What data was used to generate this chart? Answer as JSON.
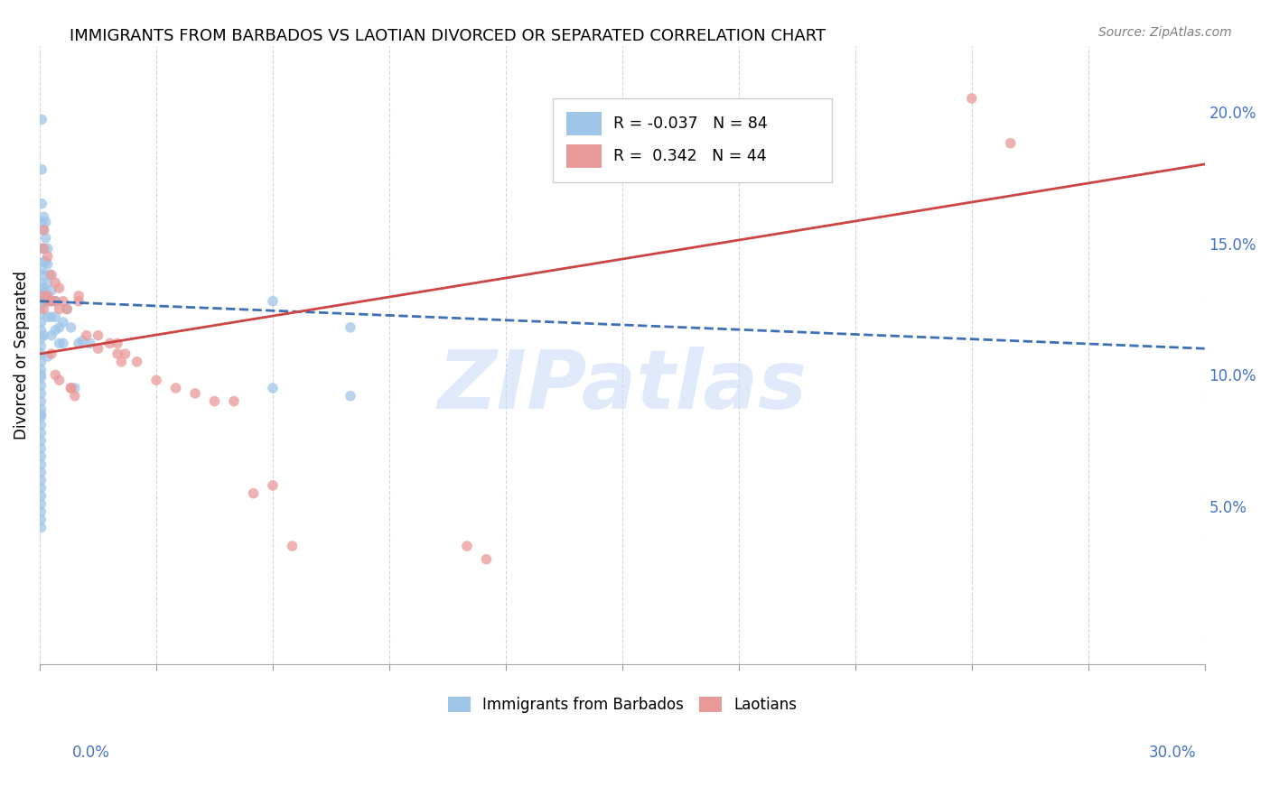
{
  "title": "IMMIGRANTS FROM BARBADOS VS LAOTIAN DIVORCED OR SEPARATED CORRELATION CHART",
  "source": "Source: ZipAtlas.com",
  "ylabel": "Divorced or Separated",
  "right_yticks": [
    "5.0%",
    "10.0%",
    "15.0%",
    "20.0%"
  ],
  "right_ytick_vals": [
    0.05,
    0.1,
    0.15,
    0.2
  ],
  "xlim": [
    0.0,
    0.3
  ],
  "ylim": [
    -0.01,
    0.225
  ],
  "legend_blue_R": "-0.037",
  "legend_blue_N": "84",
  "legend_pink_R": "0.342",
  "legend_pink_N": "44",
  "blue_color": "#9fc5e8",
  "pink_color": "#ea9999",
  "blue_line_color": "#3d6fb5",
  "pink_line_color": "#cc4444",
  "watermark": "ZIPatlas",
  "watermark_color": "#c9daf8",
  "blue_trend_x": [
    0.0,
    0.3
  ],
  "blue_trend_y": [
    0.128,
    0.11
  ],
  "pink_trend_x": [
    0.0,
    0.3
  ],
  "pink_trend_y": [
    0.108,
    0.18
  ],
  "blue_dots_x": [
    0.0005,
    0.0005,
    0.0005,
    0.0005,
    0.0005,
    0.0005,
    0.0005,
    0.001,
    0.001,
    0.001,
    0.001,
    0.001,
    0.001,
    0.001,
    0.001,
    0.0015,
    0.0015,
    0.0015,
    0.0015,
    0.002,
    0.002,
    0.002,
    0.002,
    0.002,
    0.002,
    0.0025,
    0.0025,
    0.003,
    0.003,
    0.003,
    0.003,
    0.004,
    0.004,
    0.004,
    0.005,
    0.005,
    0.006,
    0.006,
    0.007,
    0.008,
    0.009,
    0.01,
    0.011,
    0.013,
    0.0003,
    0.0003,
    0.0003,
    0.0003,
    0.0003,
    0.0003,
    0.0003,
    0.0003,
    0.0003,
    0.0003,
    0.0003,
    0.0003,
    0.0003,
    0.0003,
    0.0003,
    0.0003,
    0.0003,
    0.0003,
    0.0003,
    0.0003,
    0.0003,
    0.0003,
    0.0003,
    0.0003,
    0.0003,
    0.0003,
    0.0003,
    0.0003,
    0.0003,
    0.0003,
    0.0003,
    0.0003,
    0.0003,
    0.0003,
    0.06,
    0.08,
    0.06,
    0.08
  ],
  "blue_dots_y": [
    0.197,
    0.178,
    0.165,
    0.158,
    0.148,
    0.14,
    0.133,
    0.16,
    0.155,
    0.148,
    0.143,
    0.138,
    0.133,
    0.128,
    0.115,
    0.158,
    0.152,
    0.143,
    0.13,
    0.148,
    0.142,
    0.135,
    0.128,
    0.122,
    0.107,
    0.138,
    0.128,
    0.132,
    0.128,
    0.122,
    0.115,
    0.128,
    0.122,
    0.117,
    0.118,
    0.112,
    0.12,
    0.112,
    0.125,
    0.118,
    0.095,
    0.112,
    0.113,
    0.112,
    0.135,
    0.132,
    0.129,
    0.126,
    0.123,
    0.12,
    0.117,
    0.114,
    0.111,
    0.108,
    0.105,
    0.102,
    0.099,
    0.096,
    0.093,
    0.09,
    0.087,
    0.084,
    0.081,
    0.078,
    0.075,
    0.072,
    0.069,
    0.066,
    0.063,
    0.06,
    0.057,
    0.054,
    0.051,
    0.048,
    0.045,
    0.042,
    0.1,
    0.085,
    0.128,
    0.118,
    0.095,
    0.092
  ],
  "pink_dots_x": [
    0.001,
    0.001,
    0.001,
    0.001,
    0.002,
    0.002,
    0.002,
    0.003,
    0.003,
    0.004,
    0.004,
    0.005,
    0.005,
    0.006,
    0.007,
    0.008,
    0.01,
    0.012,
    0.015,
    0.02,
    0.022,
    0.025,
    0.03,
    0.035,
    0.04,
    0.045,
    0.05,
    0.06,
    0.065,
    0.11,
    0.115,
    0.24,
    0.25,
    0.003,
    0.004,
    0.005,
    0.008,
    0.009,
    0.01,
    0.015,
    0.018,
    0.02,
    0.021,
    0.055
  ],
  "pink_dots_y": [
    0.155,
    0.148,
    0.13,
    0.125,
    0.145,
    0.13,
    0.128,
    0.138,
    0.128,
    0.135,
    0.128,
    0.133,
    0.125,
    0.128,
    0.125,
    0.095,
    0.128,
    0.115,
    0.115,
    0.112,
    0.108,
    0.105,
    0.098,
    0.095,
    0.093,
    0.09,
    0.09,
    0.058,
    0.035,
    0.035,
    0.03,
    0.205,
    0.188,
    0.108,
    0.1,
    0.098,
    0.095,
    0.092,
    0.13,
    0.11,
    0.112,
    0.108,
    0.105,
    0.055
  ]
}
